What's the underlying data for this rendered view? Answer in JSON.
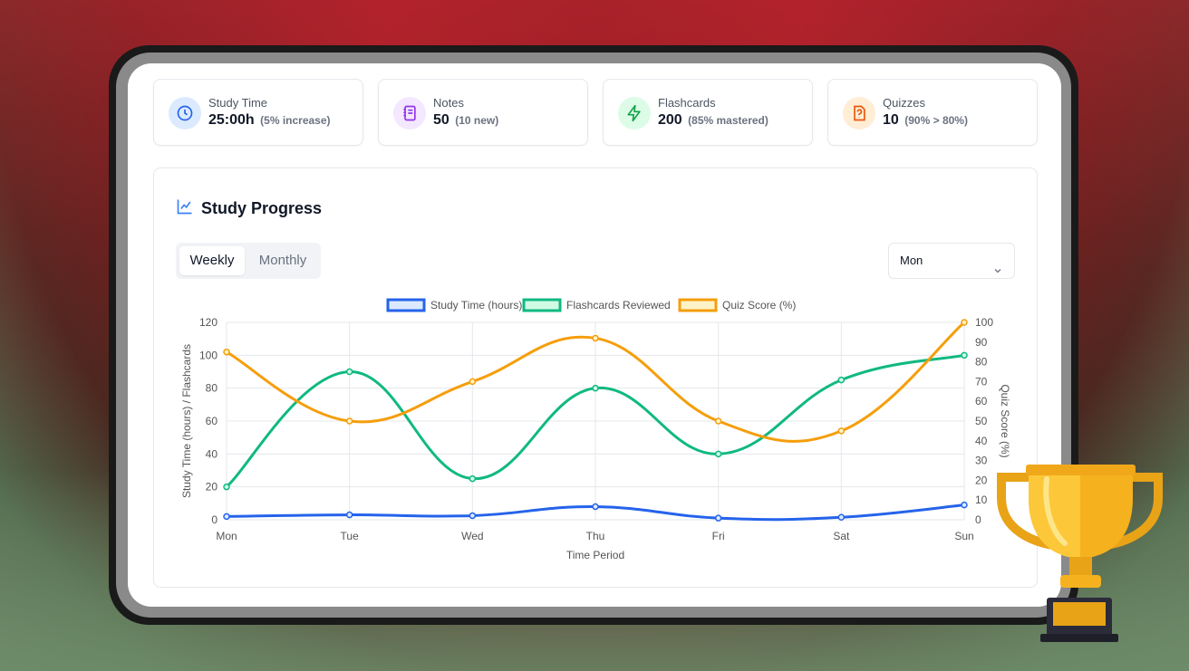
{
  "stats": [
    {
      "label": "Study Time",
      "value": "25:00h",
      "sub": "(5% increase)",
      "icon": "clock-icon",
      "bg": "#dbeafe",
      "color": "#2563eb"
    },
    {
      "label": "Notes",
      "value": "50",
      "sub": "(10 new)",
      "icon": "notebook-icon",
      "bg": "#f3e8ff",
      "color": "#9333ea"
    },
    {
      "label": "Flashcards",
      "value": "200",
      "sub": "(85% mastered)",
      "icon": "lightning-icon",
      "bg": "#dcfce7",
      "color": "#16a34a"
    },
    {
      "label": "Quizzes",
      "value": "10",
      "sub": "(90% > 80%)",
      "icon": "quiz-icon",
      "bg": "#ffedd5",
      "color": "#ea580c"
    }
  ],
  "progress": {
    "title": "Study Progress",
    "tabs": [
      "Weekly",
      "Monthly"
    ],
    "active_tab": "Weekly",
    "select_value": "Mon"
  },
  "chart_data": {
    "type": "line",
    "categories": [
      "Mon",
      "Tue",
      "Wed",
      "Thu",
      "Fri",
      "Sat",
      "Sun"
    ],
    "series": [
      {
        "name": "Study Time (hours)",
        "axis": "left",
        "color": "#2563eb",
        "fill": "#dbeafe",
        "values": [
          2,
          3,
          2.5,
          8,
          1,
          1.5,
          9
        ]
      },
      {
        "name": "Flashcards Reviewed",
        "axis": "left",
        "color": "#10b981",
        "fill": "#d1fae5",
        "values": [
          20,
          90,
          25,
          80,
          40,
          85,
          100
        ]
      },
      {
        "name": "Quiz Score (%)",
        "axis": "right",
        "color": "#f59e0b",
        "fill": "#fef3c7",
        "values": [
          85,
          50,
          70,
          92,
          50,
          45,
          100
        ]
      }
    ],
    "xlabel": "Time Period",
    "ylabel": "Study Time (hours) / Flashcards",
    "ylabel_right": "Quiz Score (%)",
    "ylim": [
      0,
      120
    ],
    "yticks": [
      0,
      20,
      40,
      60,
      80,
      100,
      120
    ],
    "ylim_right": [
      0,
      100
    ],
    "yticks_right": [
      0,
      10,
      20,
      30,
      40,
      50,
      60,
      70,
      80,
      90,
      100
    ],
    "grid": true,
    "legend": "top-center"
  }
}
